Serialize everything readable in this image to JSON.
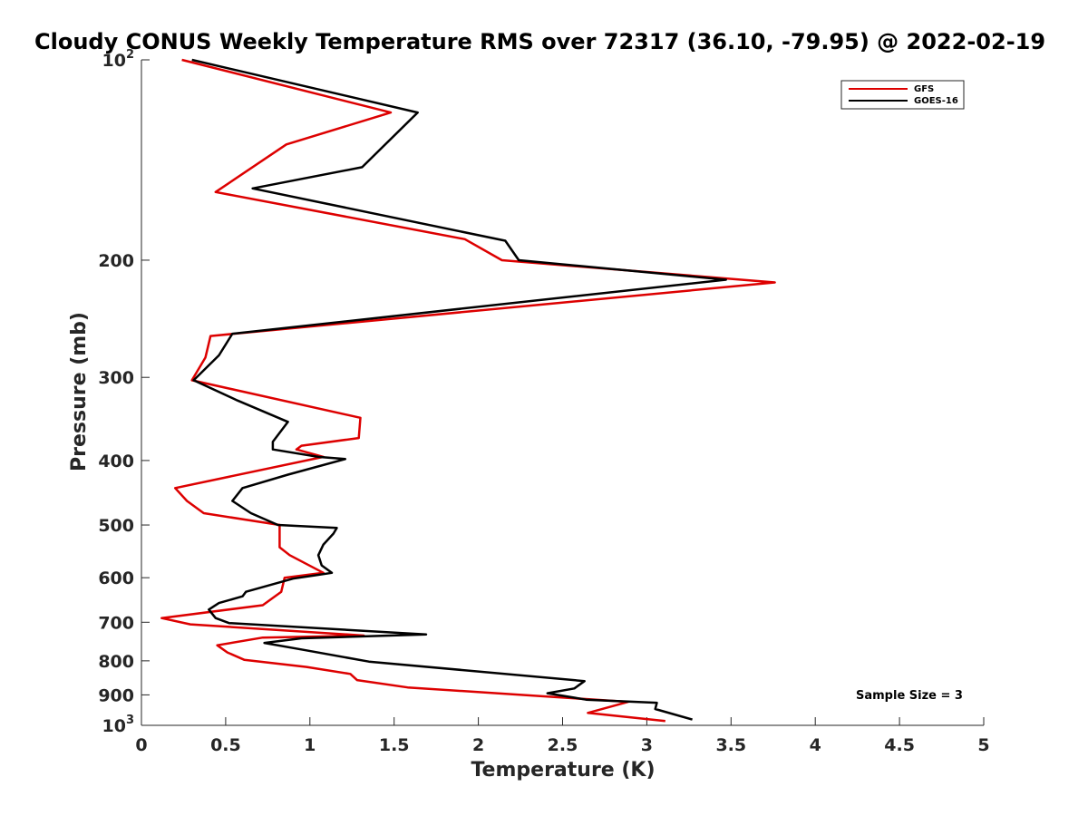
{
  "chart_data": {
    "type": "line",
    "title": "Cloudy CONUS Weekly Temperature RMS over 72317 (36.10, -79.95) @ 2022-02-19",
    "xlabel": "Temperature (K)",
    "ylabel": "Pressure (mb)",
    "xlim": [
      0,
      5
    ],
    "ylim": [
      100,
      1000
    ],
    "yscale": "log",
    "y_reversed": true,
    "x_ticks": [
      "0",
      "0.5",
      "1",
      "1.5",
      "2",
      "2.5",
      "3",
      "3.5",
      "4",
      "4.5",
      "5"
    ],
    "y_ticks": [
      {
        "value": 100,
        "base": "10",
        "exp": "2"
      },
      {
        "value": 200,
        "label": "200"
      },
      {
        "value": 300,
        "label": "300"
      },
      {
        "value": 400,
        "label": "400"
      },
      {
        "value": 500,
        "label": "500"
      },
      {
        "value": 600,
        "label": "600"
      },
      {
        "value": 700,
        "label": "700"
      },
      {
        "value": 800,
        "label": "800"
      },
      {
        "value": 900,
        "label": "900"
      },
      {
        "value": 1000,
        "base": "10",
        "exp": "3"
      }
    ],
    "grid": false,
    "legend_position": "top-right",
    "annotation": "Sample Size = 3",
    "series": [
      {
        "name": "GFS",
        "color": "#dd0000",
        "x": [
          0.24,
          1.48,
          0.86,
          0.44,
          1.92,
          2.14,
          3.76,
          0.41,
          0.38,
          0.3,
          1.3,
          1.29,
          0.95,
          0.92,
          1.08,
          0.2,
          0.27,
          0.37,
          0.82,
          0.82,
          0.88,
          1.08,
          0.85,
          0.83,
          0.72,
          0.12,
          0.29,
          1.32,
          0.72,
          0.45,
          0.51,
          0.61,
          0.98,
          1.24,
          1.28,
          1.58,
          2.89,
          2.65,
          3.11
        ],
        "y": [
          100,
          120,
          134,
          158,
          186,
          200,
          216,
          260,
          280,
          303,
          345,
          370,
          380,
          385,
          395,
          440,
          460,
          480,
          500,
          540,
          555,
          590,
          600,
          630,
          660,
          690,
          705,
          733,
          738,
          758,
          777,
          797,
          817,
          837,
          855,
          877,
          922,
          958,
          985
        ]
      },
      {
        "name": "GOES-16",
        "color": "#000000",
        "x": [
          0.3,
          1.64,
          1.31,
          0.66,
          2.16,
          2.24,
          3.47,
          0.54,
          0.46,
          0.31,
          0.57,
          0.87,
          0.78,
          0.78,
          1.05,
          1.21,
          0.87,
          0.6,
          0.54,
          0.65,
          0.81,
          1.16,
          1.14,
          1.08,
          1.05,
          1.07,
          1.13,
          0.9,
          0.62,
          0.6,
          0.46,
          0.4,
          0.44,
          0.52,
          1.69,
          0.95,
          0.73,
          0.96,
          1.35,
          2.63,
          2.57,
          2.41,
          2.64,
          3.06,
          3.05,
          3.27
        ],
        "y": [
          100,
          120,
          145,
          156,
          187,
          200,
          214,
          258,
          278,
          303,
          325,
          350,
          375,
          385,
          395,
          398,
          420,
          440,
          460,
          480,
          500,
          505,
          515,
          535,
          555,
          575,
          590,
          602,
          630,
          640,
          655,
          670,
          690,
          702,
          730,
          740,
          752,
          770,
          802,
          858,
          880,
          895,
          915,
          925,
          945,
          980
        ]
      }
    ]
  }
}
